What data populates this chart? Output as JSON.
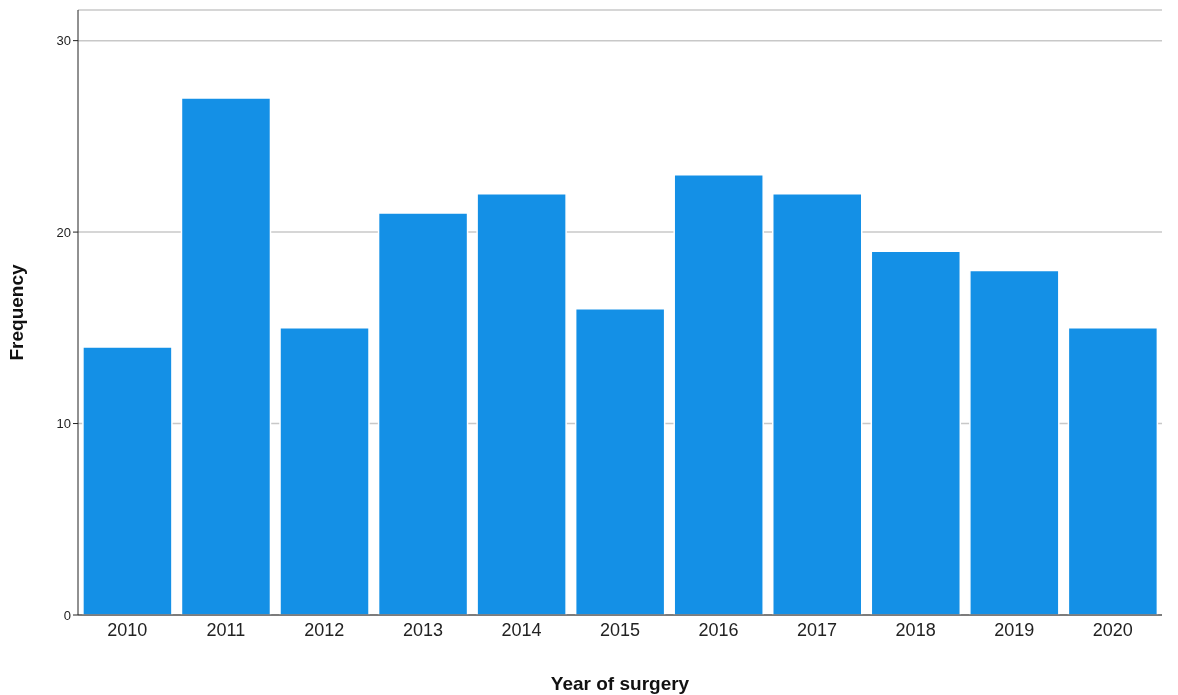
{
  "chart_data": {
    "type": "bar",
    "xlabel": "Year of surgery",
    "ylabel": "Frequency",
    "categories": [
      "2010",
      "2011",
      "2012",
      "2013",
      "2014",
      "2015",
      "2016",
      "2017",
      "2018",
      "2019",
      "2020"
    ],
    "values": [
      14,
      27,
      15,
      21,
      22,
      16,
      23,
      22,
      19,
      18,
      15
    ],
    "color": "#1490e6",
    "ylim": [
      0,
      31.6
    ],
    "yticks": [
      0,
      10,
      20,
      30
    ],
    "grid": "y",
    "legend": false
  }
}
